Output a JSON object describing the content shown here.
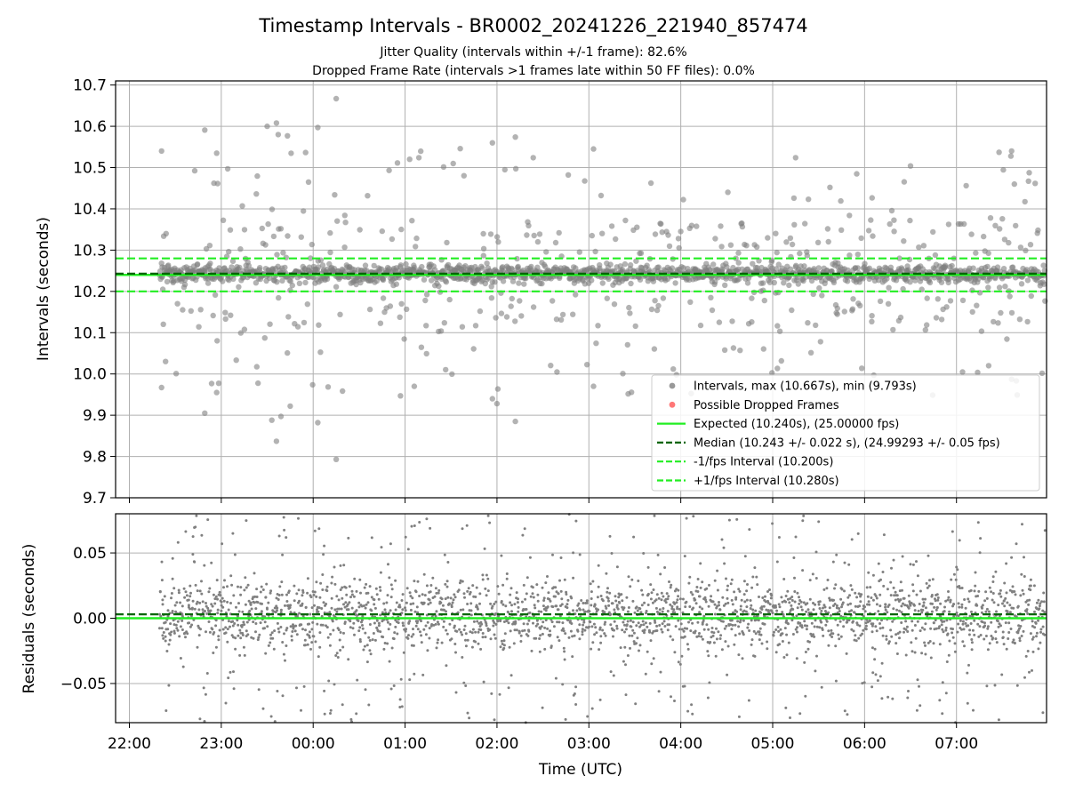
{
  "title": "Timestamp Intervals - BR0002_20241226_221940_857474",
  "subtitle_lines": [
    "Jitter Quality (intervals within +/-1 frame): 82.6%",
    "Dropped Frame Rate (intervals >1 frames late within 50 FF files): 0.0%"
  ],
  "colors": {
    "points": "#808080",
    "dropped": "#ff5555",
    "expected": "#22ee22",
    "median": "#006400",
    "fps_band": "#22ee22",
    "grid": "#b0b0b0"
  },
  "chart_data": [
    {
      "type": "scatter",
      "name": "intervals",
      "ylabel": "Intervals (seconds)",
      "ylim": [
        9.7,
        10.71
      ],
      "yticks": [
        9.7,
        9.8,
        9.9,
        10.0,
        10.1,
        10.2,
        10.3,
        10.4,
        10.5,
        10.6,
        10.7
      ],
      "ytick_labels": [
        "9.7",
        "9.8",
        "9.9",
        "10.0",
        "10.1",
        "10.2",
        "10.3",
        "10.4",
        "10.5",
        "10.6",
        "10.7"
      ],
      "x_unit": "hours since 22:00 UTC",
      "xlim": [
        -0.15,
        9.98
      ],
      "grid": true,
      "legend_position": "lower right",
      "legend": [
        {
          "kind": "dot",
          "label": "Intervals, max (10.667s), min (9.793s)",
          "color": "#808080"
        },
        {
          "kind": "dot",
          "label": "Possible Dropped Frames",
          "color": "#ff5555"
        },
        {
          "kind": "solid",
          "label": "Expected (10.240s), (25.00000 fps)",
          "color": "#22ee22"
        },
        {
          "kind": "dashed",
          "label": "Median (10.243 +/- 0.022 s), (24.99293 +/- 0.05 fps)",
          "color": "#006400"
        },
        {
          "kind": "dashed",
          "label": "-1/fps Interval (10.200s)",
          "color": "#22ee22"
        },
        {
          "kind": "dashed",
          "label": "+1/fps Interval (10.280s)",
          "color": "#22ee22"
        }
      ],
      "lines": {
        "expected": 10.24,
        "median": 10.243,
        "minus_fps": 10.2,
        "plus_fps": 10.28
      },
      "data_range": {
        "x_start": 0.33,
        "x_end": 9.98
      },
      "outliers": [
        [
          0.35,
          10.54
        ],
        [
          0.35,
          9.967
        ],
        [
          0.82,
          10.591
        ],
        [
          0.82,
          9.905
        ],
        [
          0.95,
          10.535
        ],
        [
          0.95,
          9.955
        ],
        [
          1.07,
          10.497
        ],
        [
          1.5,
          10.6
        ],
        [
          1.55,
          9.888
        ],
        [
          1.6,
          10.608
        ],
        [
          1.62,
          10.58
        ],
        [
          1.6,
          9.837
        ],
        [
          1.65,
          9.897
        ],
        [
          1.72,
          10.577
        ],
        [
          1.75,
          9.922
        ],
        [
          1.95,
          10.465
        ],
        [
          2.05,
          10.597
        ],
        [
          2.05,
          9.882
        ],
        [
          2.25,
          10.667
        ],
        [
          2.25,
          9.793
        ],
        [
          2.95,
          9.947
        ],
        [
          3.05,
          10.52
        ],
        [
          3.15,
          10.524
        ],
        [
          3.1,
          9.97
        ],
        [
          3.6,
          10.546
        ],
        [
          3.95,
          10.56
        ],
        [
          3.95,
          9.94
        ],
        [
          4.0,
          9.928
        ],
        [
          4.2,
          10.574
        ],
        [
          4.2,
          9.885
        ],
        [
          5.05,
          10.545
        ],
        [
          5.05,
          9.97
        ],
        [
          7.25,
          10.524
        ],
        [
          8.5,
          10.504
        ],
        [
          9.6,
          10.54
        ],
        [
          9.6,
          9.987
        ],
        [
          8.1,
          9.997
        ],
        [
          9.35,
          10.02
        ]
      ]
    },
    {
      "type": "scatter",
      "name": "residuals",
      "ylabel": "Residuals (seconds)",
      "ylim": [
        -0.08,
        0.08
      ],
      "yticks": [
        -0.05,
        0.0,
        0.05
      ],
      "ytick_labels": [
        "−0.05",
        "0.00",
        "0.05"
      ],
      "xlabel": "Time (UTC)",
      "xticks": [
        0,
        1,
        2,
        3,
        4,
        5,
        6,
        7,
        8,
        9
      ],
      "xtick_labels": [
        "22:00",
        "23:00",
        "00:00",
        "01:00",
        "02:00",
        "03:00",
        "04:00",
        "05:00",
        "06:00",
        "07:00"
      ],
      "xlim": [
        -0.15,
        9.98
      ],
      "grid": true,
      "lines": {
        "zero": 0.0,
        "median_offset": 0.003
      }
    }
  ]
}
